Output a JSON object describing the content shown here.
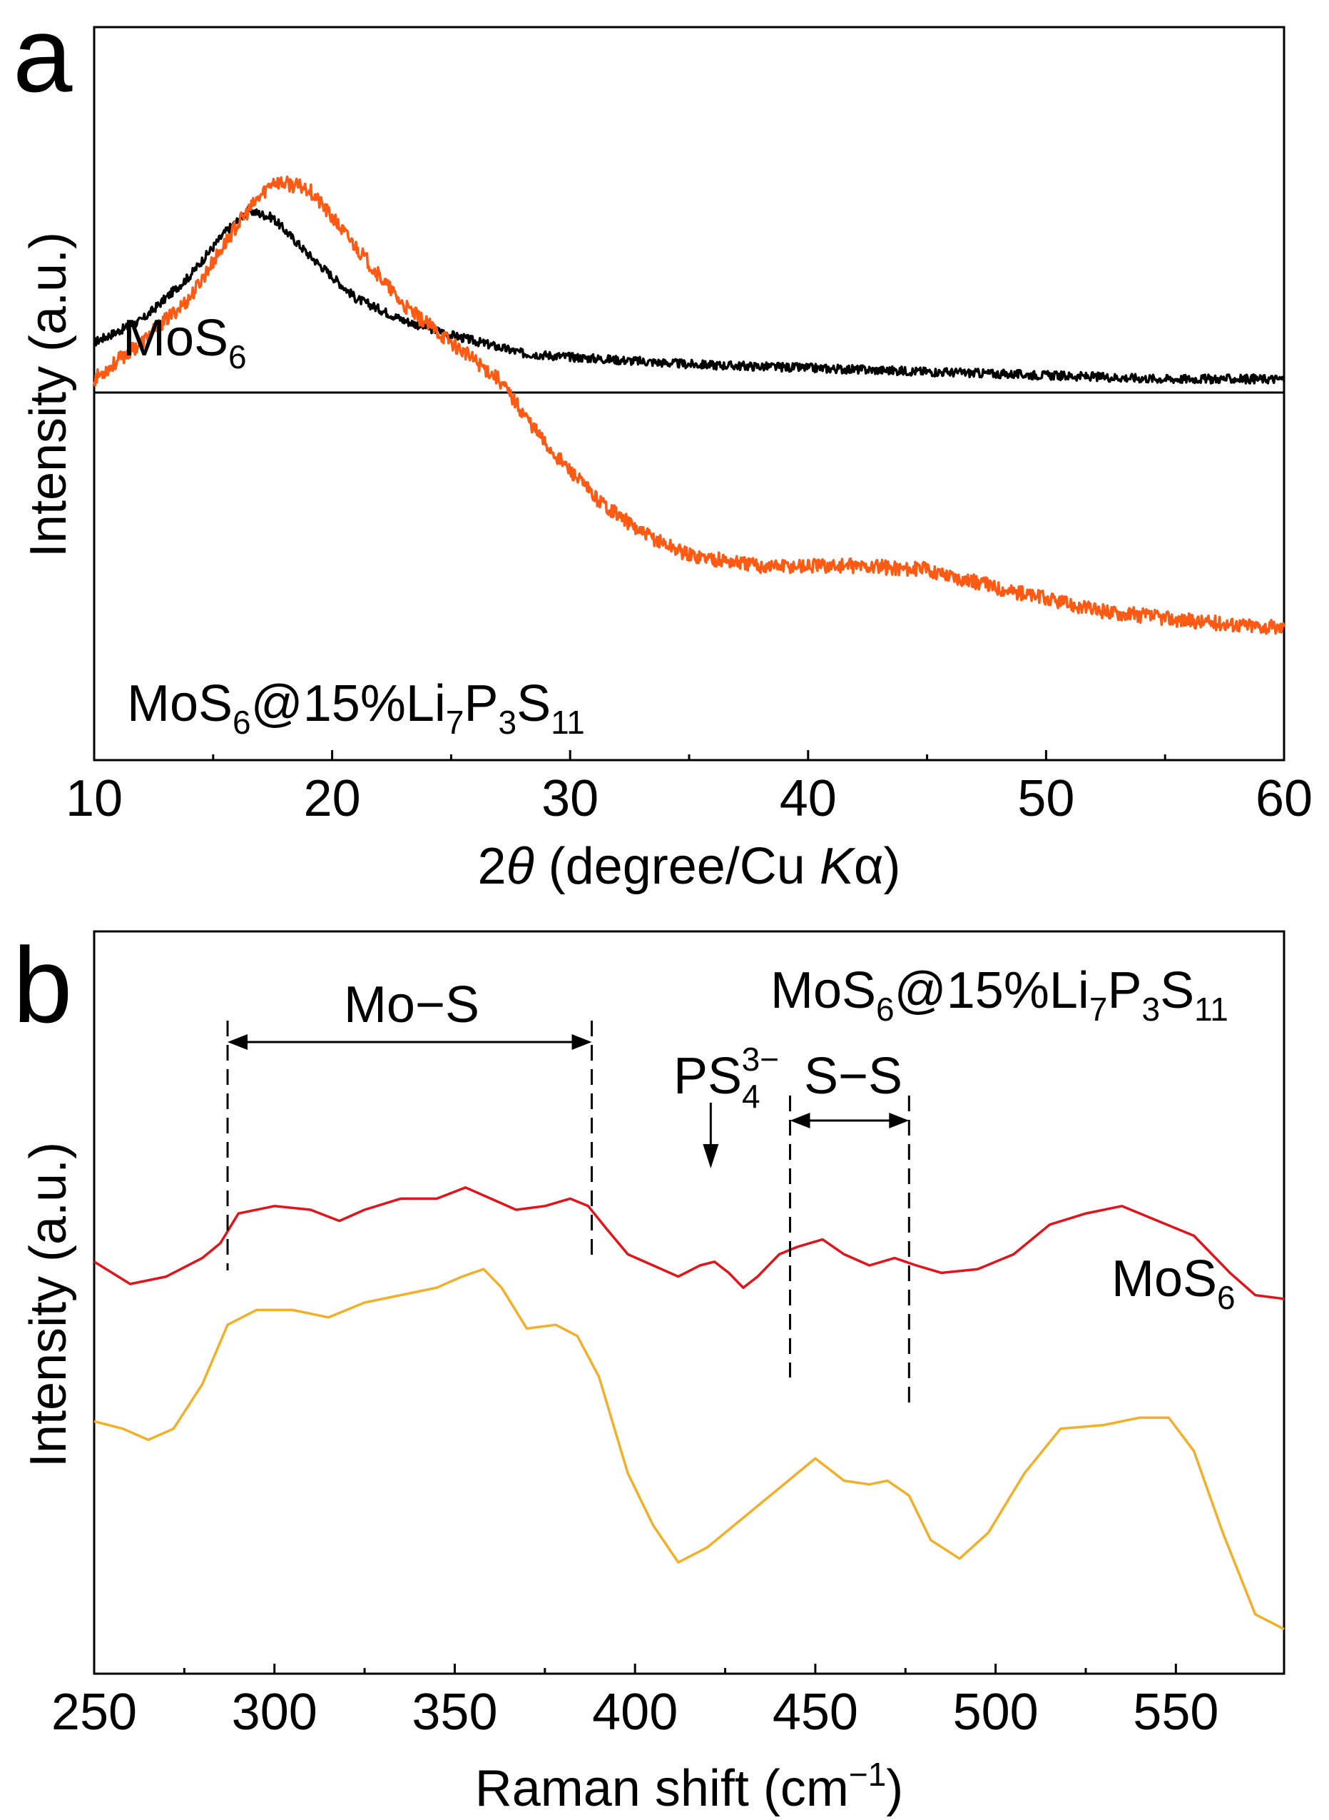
{
  "chart_data": [
    {
      "panel": "a",
      "type": "line",
      "xlabel_prefix": "2",
      "xlabel_theta": "θ",
      "xlabel_mid": " (degree/Cu ",
      "xlabel_K": "K",
      "xlabel_alpha": "α",
      "xlabel_end": ")",
      "ylabel": "Intensity (a.u.)",
      "xlim": [
        10,
        60
      ],
      "xticks": [
        10,
        20,
        30,
        40,
        50,
        60
      ],
      "grid": false,
      "series": [
        {
          "name": "MoS6",
          "label_main": "MoS",
          "label_sub": "6",
          "color": "#000000",
          "points": [
            [
              10,
              0.57
            ],
            [
              12,
              0.6
            ],
            [
              14,
              0.66
            ],
            [
              15.5,
              0.72
            ],
            [
              16.5,
              0.75
            ],
            [
              17.5,
              0.74
            ],
            [
              19,
              0.69
            ],
            [
              21,
              0.63
            ],
            [
              23,
              0.6
            ],
            [
              25,
              0.58
            ],
            [
              28,
              0.555
            ],
            [
              30,
              0.55
            ],
            [
              35,
              0.54
            ],
            [
              40,
              0.535
            ],
            [
              45,
              0.53
            ],
            [
              50,
              0.525
            ],
            [
              55,
              0.52
            ],
            [
              60,
              0.52
            ]
          ]
        },
        {
          "name": "MoS6@15%Li7P3S11",
          "label_parts": [
            "MoS",
            "6",
            "@15%Li",
            "7",
            "P",
            "3",
            "S",
            "11"
          ],
          "color": "#ff5a14",
          "points": [
            [
              10,
              0.52
            ],
            [
              12,
              0.57
            ],
            [
              14,
              0.63
            ],
            [
              16,
              0.73
            ],
            [
              17.5,
              0.79
            ],
            [
              19,
              0.78
            ],
            [
              21,
              0.7
            ],
            [
              23,
              0.62
            ],
            [
              25,
              0.57
            ],
            [
              27,
              0.52
            ],
            [
              29,
              0.43
            ],
            [
              31,
              0.36
            ],
            [
              33,
              0.31
            ],
            [
              35,
              0.28
            ],
            [
              38,
              0.265
            ],
            [
              42,
              0.265
            ],
            [
              45,
              0.26
            ],
            [
              48,
              0.235
            ],
            [
              52,
              0.205
            ],
            [
              56,
              0.19
            ],
            [
              60,
              0.18
            ]
          ]
        }
      ]
    },
    {
      "panel": "b",
      "type": "line",
      "xlabel_main": "Raman shift (cm",
      "xlabel_sup": "−1",
      "xlabel_end": ")",
      "ylabel": "Intensity (a.u.)",
      "xlim": [
        250,
        580
      ],
      "xticks": [
        250,
        300,
        350,
        400,
        450,
        500,
        550
      ],
      "grid": false,
      "series": [
        {
          "name": "MoS6@15%Li7P3S11",
          "label_parts": [
            "MoS",
            "6",
            "@15%Li",
            "7",
            "P",
            "3",
            "S",
            "11"
          ],
          "color": "#e0151b",
          "points": [
            [
              250,
              0.555
            ],
            [
              260,
              0.525
            ],
            [
              270,
              0.535
            ],
            [
              280,
              0.56
            ],
            [
              285,
              0.58
            ],
            [
              290,
              0.62
            ],
            [
              300,
              0.63
            ],
            [
              310,
              0.625
            ],
            [
              318,
              0.61
            ],
            [
              325,
              0.625
            ],
            [
              335,
              0.64
            ],
            [
              345,
              0.64
            ],
            [
              353,
              0.655
            ],
            [
              360,
              0.64
            ],
            [
              367,
              0.625
            ],
            [
              375,
              0.63
            ],
            [
              382,
              0.64
            ],
            [
              387,
              0.63
            ],
            [
              392,
              0.6
            ],
            [
              398,
              0.565
            ],
            [
              405,
              0.55
            ],
            [
              412,
              0.535
            ],
            [
              418,
              0.55
            ],
            [
              422,
              0.555
            ],
            [
              426,
              0.54
            ],
            [
              430,
              0.52
            ],
            [
              434,
              0.535
            ],
            [
              440,
              0.565
            ],
            [
              445,
              0.575
            ],
            [
              452,
              0.585
            ],
            [
              458,
              0.565
            ],
            [
              465,
              0.55
            ],
            [
              472,
              0.56
            ],
            [
              478,
              0.55
            ],
            [
              485,
              0.54
            ],
            [
              495,
              0.545
            ],
            [
              505,
              0.565
            ],
            [
              515,
              0.605
            ],
            [
              525,
              0.62
            ],
            [
              535,
              0.63
            ],
            [
              545,
              0.61
            ],
            [
              555,
              0.59
            ],
            [
              565,
              0.54
            ],
            [
              572,
              0.51
            ],
            [
              580,
              0.505
            ]
          ]
        },
        {
          "name": "MoS6",
          "label_main": "MoS",
          "label_sub": "6",
          "color": "#f0b02a",
          "points": [
            [
              250,
              0.34
            ],
            [
              258,
              0.33
            ],
            [
              265,
              0.315
            ],
            [
              272,
              0.33
            ],
            [
              280,
              0.39
            ],
            [
              287,
              0.47
            ],
            [
              295,
              0.49
            ],
            [
              305,
              0.49
            ],
            [
              315,
              0.48
            ],
            [
              325,
              0.5
            ],
            [
              335,
              0.51
            ],
            [
              345,
              0.52
            ],
            [
              352,
              0.535
            ],
            [
              358,
              0.545
            ],
            [
              363,
              0.52
            ],
            [
              370,
              0.465
            ],
            [
              378,
              0.47
            ],
            [
              384,
              0.455
            ],
            [
              390,
              0.4
            ],
            [
              398,
              0.27
            ],
            [
              405,
              0.2
            ],
            [
              412,
              0.15
            ],
            [
              420,
              0.17
            ],
            [
              430,
              0.21
            ],
            [
              440,
              0.25
            ],
            [
              450,
              0.29
            ],
            [
              458,
              0.26
            ],
            [
              465,
              0.255
            ],
            [
              470,
              0.26
            ],
            [
              476,
              0.24
            ],
            [
              482,
              0.18
            ],
            [
              490,
              0.155
            ],
            [
              498,
              0.19
            ],
            [
              508,
              0.27
            ],
            [
              518,
              0.33
            ],
            [
              530,
              0.335
            ],
            [
              540,
              0.345
            ],
            [
              548,
              0.345
            ],
            [
              555,
              0.3
            ],
            [
              563,
              0.19
            ],
            [
              572,
              0.08
            ],
            [
              580,
              0.06
            ]
          ]
        }
      ],
      "annotations": {
        "mos": "Mo−S",
        "ps4_main": "PS",
        "ps4_sub": "4",
        "ps4_sup": "3−",
        "ss": "S−S",
        "mos_range": [
          287,
          388
        ],
        "ss_range": [
          443,
          476
        ],
        "ps4_at": 421
      }
    }
  ],
  "panel_labels": [
    "a",
    "b"
  ]
}
